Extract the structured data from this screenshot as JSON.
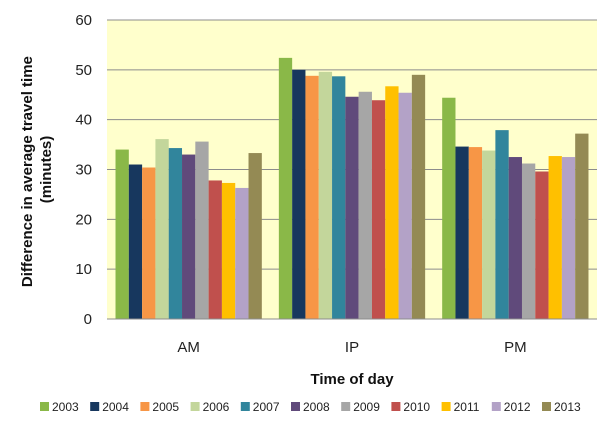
{
  "chart_data": {
    "type": "bar",
    "categories": [
      "AM",
      "IP",
      "PM"
    ],
    "xlabel": "Time of day",
    "ylabel": "Difference in average travel time (minutes)",
    "ylabel_lines": [
      "Difference in average travel time",
      "(minutes)"
    ],
    "ylim": [
      0,
      60
    ],
    "yticks": [
      "0",
      "10",
      "20",
      "30",
      "40",
      "50",
      "60"
    ],
    "grid": true,
    "legend_position": "bottom",
    "plot_background": "#FFFFCC",
    "series": [
      {
        "name": "2003",
        "color": "#8AB848",
        "values": [
          34.0,
          52.4,
          44.4
        ]
      },
      {
        "name": "2004",
        "color": "#17375E",
        "values": [
          31.0,
          50.0,
          34.6
        ]
      },
      {
        "name": "2005",
        "color": "#F79646",
        "values": [
          30.4,
          48.8,
          34.5
        ]
      },
      {
        "name": "2006",
        "color": "#C3D69B",
        "values": [
          36.1,
          49.6,
          33.8
        ]
      },
      {
        "name": "2007",
        "color": "#31859C",
        "values": [
          34.3,
          48.7,
          37.9
        ]
      },
      {
        "name": "2008",
        "color": "#604A7B",
        "values": [
          33.0,
          44.6,
          32.5
        ]
      },
      {
        "name": "2009",
        "color": "#A6A6A6",
        "values": [
          35.6,
          45.6,
          31.2
        ]
      },
      {
        "name": "2010",
        "color": "#C0504D",
        "values": [
          27.8,
          43.9,
          29.6
        ]
      },
      {
        "name": "2011",
        "color": "#FFC000",
        "values": [
          27.3,
          46.7,
          32.7
        ]
      },
      {
        "name": "2012",
        "color": "#B3A2C7",
        "values": [
          26.3,
          45.4,
          32.5
        ]
      },
      {
        "name": "2013",
        "color": "#948A54",
        "values": [
          33.3,
          49.0,
          37.2
        ]
      }
    ]
  }
}
